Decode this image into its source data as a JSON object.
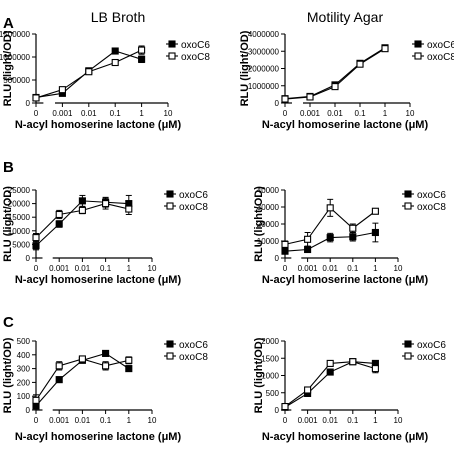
{
  "column_titles": [
    "LB Broth",
    "Motility Agar"
  ],
  "row_labels": [
    "A",
    "B",
    "C"
  ],
  "colors": {
    "ink": "#000000",
    "background": "#ffffff"
  },
  "chart_data": [
    {
      "type": "line",
      "row": "A",
      "title": "LB Broth",
      "xlabel": "N-acyl homoserine lactone (μM)",
      "ylabel": "RLU (light/OD)",
      "xscale": "log (0 shown at broken axis)",
      "xtick_labels": [
        "0",
        "0.001",
        "0.01",
        "0.1",
        "1",
        "10"
      ],
      "ylim": [
        0,
        1500000
      ],
      "ytick_labels": [
        "0",
        "500000",
        "1000000",
        "1500000"
      ],
      "legend": "top-right",
      "x": [
        0,
        0.001,
        0.01,
        0.1,
        1
      ],
      "series": [
        {
          "name": "oxoC6",
          "marker": "filled-square",
          "values": [
            120000,
            210000,
            700000,
            1130000,
            950000
          ],
          "errors": [
            40000,
            30000,
            30000,
            60000,
            70000
          ]
        },
        {
          "name": "oxoC8",
          "marker": "open-square",
          "values": [
            110000,
            290000,
            680000,
            880000,
            1150000
          ],
          "errors": [
            30000,
            40000,
            30000,
            40000,
            90000
          ]
        }
      ]
    },
    {
      "type": "line",
      "row": "A",
      "title": "Motility Agar",
      "xlabel": "N-acyl homoserine lactone (μM)",
      "ylabel": "RLU (light/OD)",
      "xscale": "log (0 shown at broken axis)",
      "xtick_labels": [
        "0",
        "0.001",
        "0.01",
        "0.1",
        "1",
        "10"
      ],
      "ylim": [
        0,
        4000000
      ],
      "ytick_labels": [
        "0",
        "1000000",
        "2000000",
        "3000000",
        "4000000"
      ],
      "legend": "top-right",
      "x": [
        0,
        0.001,
        0.01,
        0.1,
        1
      ],
      "series": [
        {
          "name": "oxoC6",
          "marker": "filled-square",
          "values": [
            250000,
            380000,
            1050000,
            2300000,
            3200000
          ],
          "errors": [
            50000,
            50000,
            60000,
            80000,
            80000
          ]
        },
        {
          "name": "oxoC8",
          "marker": "open-square",
          "values": [
            230000,
            350000,
            950000,
            2250000,
            3150000
          ],
          "errors": [
            40000,
            40000,
            60000,
            80000,
            90000
          ]
        }
      ]
    },
    {
      "type": "line",
      "row": "B",
      "title": "",
      "xlabel": "N-acyl homoserine lactone (μM)",
      "ylabel": "RLU (light/OD)",
      "xscale": "log (0 shown at broken axis)",
      "xtick_labels": [
        "0",
        "0.001",
        "0.01",
        "0.1",
        "1",
        "10"
      ],
      "ylim": [
        0,
        25000
      ],
      "ytick_labels": [
        "0",
        "5000",
        "10000",
        "15000",
        "20000",
        "25000"
      ],
      "legend": "top-right",
      "x": [
        0,
        0.001,
        0.01,
        0.1,
        1
      ],
      "series": [
        {
          "name": "oxoC6",
          "marker": "filled-square",
          "values": [
            4500,
            12500,
            21000,
            20500,
            20000
          ],
          "errors": [
            1500,
            1200,
            2000,
            1800,
            3000
          ]
        },
        {
          "name": "oxoC8",
          "marker": "open-square",
          "values": [
            7500,
            16000,
            17500,
            20000,
            18000
          ],
          "errors": [
            1500,
            1500,
            1200,
            2000,
            2000
          ]
        }
      ]
    },
    {
      "type": "line",
      "row": "B",
      "title": "",
      "xlabel": "N-acyl homoserine lactone (μM)",
      "ylabel": "RLU (light/OD)",
      "xscale": "log (0 shown at broken axis)",
      "xtick_labels": [
        "0",
        "0.001",
        "0.01",
        "0.1",
        "1",
        "10"
      ],
      "ylim": [
        0,
        40000
      ],
      "ytick_labels": [
        "0",
        "10000",
        "20000",
        "30000",
        "40000"
      ],
      "legend": "top-right",
      "x": [
        0,
        0.001,
        0.01,
        0.1,
        1
      ],
      "series": [
        {
          "name": "oxoC6",
          "marker": "filled-square",
          "values": [
            4000,
            5000,
            12000,
            12500,
            15000
          ],
          "errors": [
            1500,
            1500,
            2500,
            2500,
            5500
          ]
        },
        {
          "name": "oxoC8",
          "marker": "open-square",
          "values": [
            8000,
            11000,
            29500,
            17500,
            27500
          ],
          "errors": [
            2000,
            4000,
            5000,
            2500,
            1500
          ]
        }
      ]
    },
    {
      "type": "line",
      "row": "C",
      "title": "",
      "xlabel": "N-acyl homoserine lactone (μM)",
      "ylabel": "RLU (light/OD)",
      "xscale": "log (0 shown at broken axis)",
      "xtick_labels": [
        "0",
        "0.001",
        "0.01",
        "0.1",
        "1",
        "10"
      ],
      "ylim": [
        0,
        500
      ],
      "ytick_labels": [
        "0",
        "100",
        "200",
        "300",
        "400",
        "500"
      ],
      "legend": "top-right",
      "x": [
        0,
        0.001,
        0.01,
        0.1,
        1
      ],
      "series": [
        {
          "name": "oxoC6",
          "marker": "filled-square",
          "values": [
            30,
            220,
            360,
            410,
            300
          ],
          "errors": [
            20,
            20,
            15,
            15,
            15
          ]
        },
        {
          "name": "oxoC8",
          "marker": "open-square",
          "values": [
            70,
            320,
            370,
            320,
            360
          ],
          "errors": [
            40,
            30,
            20,
            30,
            25
          ]
        }
      ]
    },
    {
      "type": "line",
      "row": "C",
      "title": "",
      "xlabel": "N-acyl homoserine lactone (μM)",
      "ylabel": "RLU (light/OD)",
      "xscale": "log (0 shown at broken axis)",
      "xtick_labels": [
        "0",
        "0.001",
        "0.01",
        "0.1",
        "1",
        "10"
      ],
      "ylim": [
        0,
        2000
      ],
      "ytick_labels": [
        "0",
        "500",
        "1000",
        "1500",
        "2000"
      ],
      "legend": "top-right",
      "x": [
        0,
        0.001,
        0.01,
        0.1,
        1
      ],
      "series": [
        {
          "name": "oxoC6",
          "marker": "filled-square",
          "values": [
            80,
            480,
            1100,
            1400,
            1350
          ],
          "errors": [
            20,
            40,
            50,
            40,
            50
          ]
        },
        {
          "name": "oxoC8",
          "marker": "open-square",
          "values": [
            100,
            580,
            1350,
            1400,
            1200
          ],
          "errors": [
            30,
            50,
            50,
            40,
            120
          ]
        }
      ]
    }
  ]
}
